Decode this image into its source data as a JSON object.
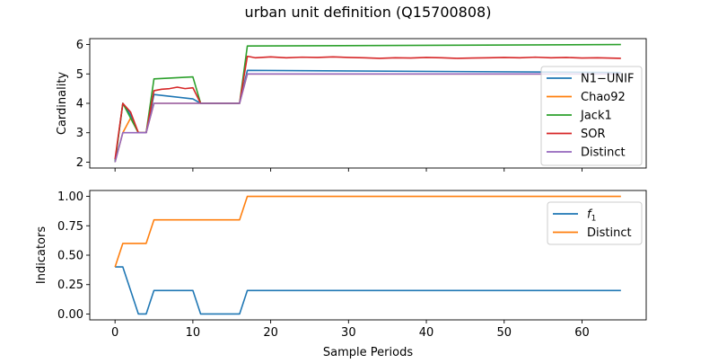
{
  "title": "urban unit definition (Q15700808)",
  "chart_data": [
    {
      "type": "line",
      "ylabel": "Cardinality",
      "xlabel": "",
      "xlim": [
        -3.25,
        68.25
      ],
      "ylim": [
        1.8,
        6.2
      ],
      "yticks": [
        2,
        3,
        4,
        5,
        6
      ],
      "xticks": [
        0,
        10,
        20,
        30,
        40,
        50,
        60
      ],
      "show_xtick_labels": false,
      "legend": "center-right",
      "series": [
        {
          "name": "N1−UNIF",
          "color": "#1f77b4",
          "x": [
            0,
            1,
            2,
            3,
            4,
            5,
            10,
            11,
            16,
            17,
            65
          ],
          "y": [
            2,
            4,
            3.6,
            3,
            3,
            4.3,
            4.15,
            4,
            4,
            5.12,
            5.05
          ]
        },
        {
          "name": "Chao92",
          "color": "#ff7f0e",
          "x": [
            0,
            1,
            2,
            3,
            4,
            5,
            10,
            11,
            16,
            17,
            65
          ],
          "y": [
            2,
            3,
            3.5,
            3,
            3,
            4,
            4,
            4,
            4,
            5,
            5
          ]
        },
        {
          "name": "Jack1",
          "color": "#2ca02c",
          "x": [
            0,
            1,
            2,
            3,
            4,
            5,
            10,
            11,
            16,
            17,
            65
          ],
          "y": [
            2,
            4,
            3.5,
            3,
            3,
            4.83,
            4.9,
            4,
            4,
            5.95,
            6
          ]
        },
        {
          "name": "SOR",
          "color": "#d62728",
          "x": [
            0,
            1,
            2,
            3,
            4,
            5,
            6,
            7,
            8,
            9,
            10,
            11,
            16,
            17,
            18,
            20,
            22,
            24,
            26,
            28,
            30,
            32,
            34,
            36,
            38,
            40,
            42,
            44,
            46,
            48,
            50,
            52,
            54,
            56,
            58,
            60,
            62,
            65
          ],
          "y": [
            2.1,
            4,
            3.7,
            3,
            3,
            4.43,
            4.48,
            4.5,
            4.55,
            4.5,
            4.53,
            4,
            4,
            5.6,
            5.55,
            5.58,
            5.55,
            5.57,
            5.56,
            5.58,
            5.56,
            5.55,
            5.53,
            5.55,
            5.54,
            5.56,
            5.55,
            5.53,
            5.54,
            5.55,
            5.56,
            5.55,
            5.57,
            5.55,
            5.56,
            5.54,
            5.55,
            5.53
          ]
        },
        {
          "name": "Distinct",
          "color": "#9467bd",
          "x": [
            0,
            1,
            2,
            3,
            4,
            5,
            10,
            11,
            16,
            17,
            65
          ],
          "y": [
            2,
            3,
            3,
            3,
            3,
            4,
            4,
            4,
            4,
            5,
            5
          ]
        }
      ]
    },
    {
      "type": "line",
      "ylabel": "Indicators",
      "xlabel": "Sample Periods",
      "xlim": [
        -3.25,
        68.25
      ],
      "ylim": [
        -0.05,
        1.05
      ],
      "yticks": [
        0.0,
        0.25,
        0.5,
        0.75,
        1.0
      ],
      "ytick_labels": [
        "0.00",
        "0.25",
        "0.50",
        "0.75",
        "1.00"
      ],
      "xticks": [
        0,
        10,
        20,
        30,
        40,
        50,
        60
      ],
      "legend": "top-right",
      "series": [
        {
          "name": "f_1",
          "color": "#1f77b4",
          "x": [
            0,
            1,
            2,
            3,
            4,
            5,
            10,
            11,
            16,
            17,
            65
          ],
          "y": [
            0.4,
            0.4,
            0.2,
            0,
            0,
            0.2,
            0.2,
            0,
            0,
            0.2,
            0.2
          ]
        },
        {
          "name": "Distinct",
          "color": "#ff7f0e",
          "x": [
            0,
            1,
            4,
            5,
            16,
            17,
            65
          ],
          "y": [
            0.4,
            0.6,
            0.6,
            0.8,
            0.8,
            1.0,
            1.0
          ]
        }
      ]
    }
  ]
}
